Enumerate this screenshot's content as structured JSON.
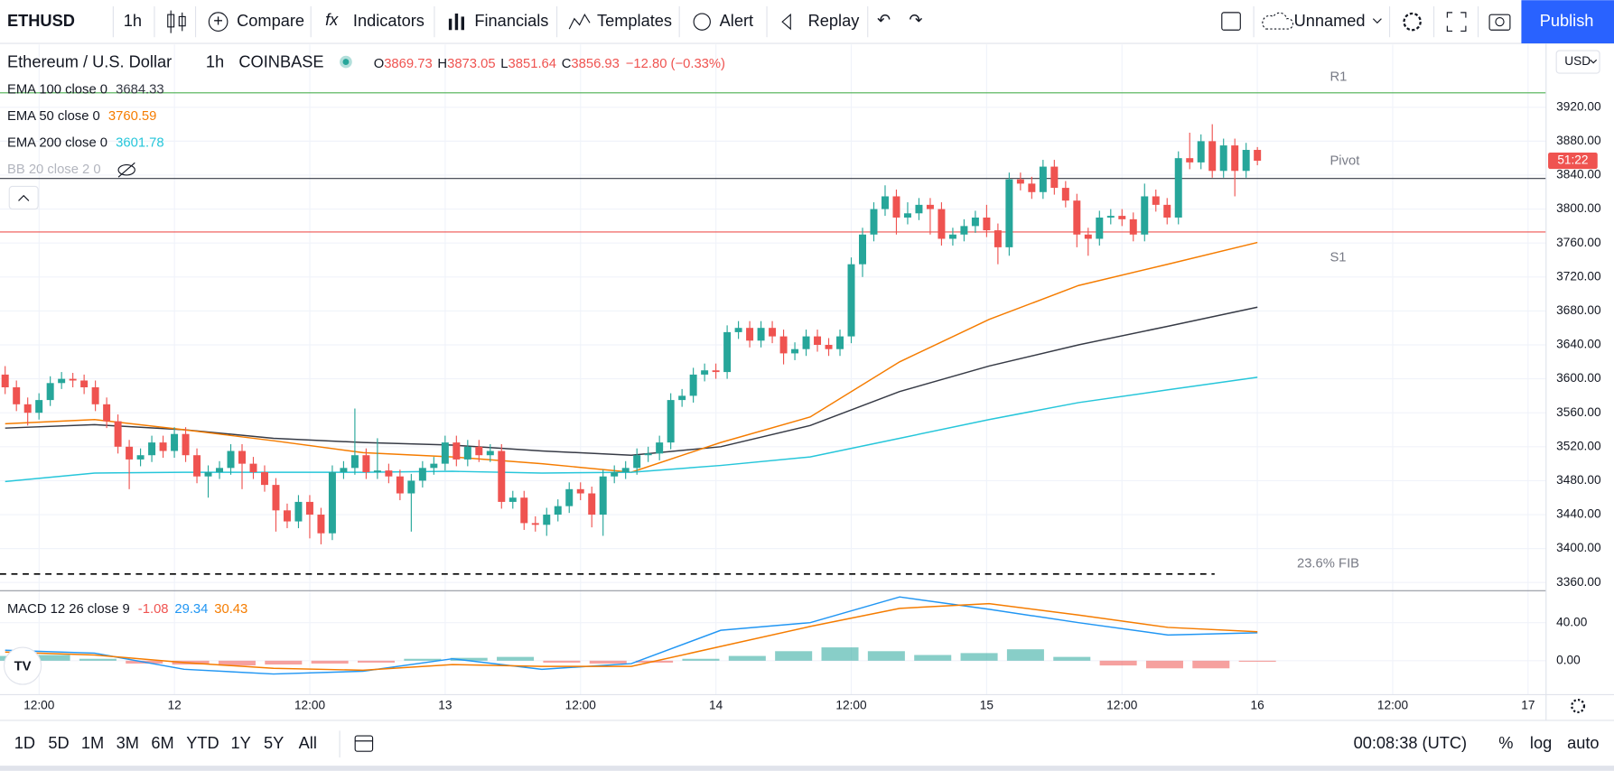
{
  "toolbar": {
    "symbol": "ETHUSD",
    "interval": "1h",
    "buttons": [
      "Compare",
      "Indicators",
      "Financials",
      "Templates",
      "Alert",
      "Replay"
    ],
    "layout_name": "Unnamed",
    "publish": "Publish"
  },
  "legend": {
    "instrument": "Ethereum / U.S. Dollar",
    "exchange": "COINBASE",
    "ohlc_keys": [
      "O",
      "H",
      "L",
      "C"
    ],
    "change": "−12.80 (−0.33%)",
    "bb": "BB 20 close 2 0"
  },
  "indicators": [
    {
      "name": "EMA 100 close 0",
      "color": "#363a45",
      "values": [
        3542,
        3546,
        3540,
        3530,
        3525,
        3522,
        3515,
        3510,
        3520,
        3545,
        3585,
        3615,
        3640,
        3662,
        3684.33
      ]
    },
    {
      "name": "EMA 50 close 0",
      "color": "#f57c00",
      "values": [
        3547,
        3552,
        3540,
        3527,
        3513,
        3508,
        3500,
        3490,
        3525,
        3555,
        3620,
        3670,
        3710,
        3735,
        3760.59
      ]
    },
    {
      "name": "EMA 200 close 0",
      "color": "#26c6da",
      "values": [
        3479,
        3489,
        3490,
        3490,
        3490,
        3491,
        3489,
        3490,
        3498,
        3508,
        3530,
        3552,
        3572,
        3587,
        3601.78
      ]
    }
  ],
  "price": {
    "currency": "USD",
    "countdown": "51:22",
    "up_color": "#26a69a",
    "down_color": "#ef5350",
    "ylim": [
      3351.5,
      3994
    ],
    "yticks": [
      {
        "value": 3920,
        "label": "3920.00"
      },
      {
        "value": 3880,
        "label": "3880.00"
      },
      {
        "value": 3840,
        "label": "3840.00"
      },
      {
        "value": 3800,
        "label": "3800.00"
      },
      {
        "value": 3760,
        "label": "3760.00"
      },
      {
        "value": 3720,
        "label": "3720.00"
      },
      {
        "value": 3680,
        "label": "3680.00"
      },
      {
        "value": 3640,
        "label": "3640.00"
      },
      {
        "value": 3600,
        "label": "3600.00"
      },
      {
        "value": 3560,
        "label": "3560.00"
      },
      {
        "value": 3520,
        "label": "3520.00"
      },
      {
        "value": 3480,
        "label": "3480.00"
      },
      {
        "value": 3440,
        "label": "3440.00"
      },
      {
        "value": 3400,
        "label": "3400.00"
      },
      {
        "value": 3360,
        "label": "3360.00"
      }
    ],
    "candles": [
      [
        3605,
        3615,
        3582,
        3590
      ],
      [
        3590,
        3598,
        3562,
        3570
      ],
      [
        3570,
        3578,
        3545,
        3560
      ],
      [
        3560,
        3583,
        3552,
        3575
      ],
      [
        3575,
        3603,
        3568,
        3595
      ],
      [
        3595,
        3608,
        3588,
        3600
      ],
      [
        3600,
        3607,
        3590,
        3598
      ],
      [
        3598,
        3605,
        3582,
        3590
      ],
      [
        3590,
        3598,
        3562,
        3570
      ],
      [
        3570,
        3578,
        3542,
        3550
      ],
      [
        3550,
        3558,
        3512,
        3520
      ],
      [
        3520,
        3528,
        3470,
        3505
      ],
      [
        3505,
        3518,
        3497,
        3510
      ],
      [
        3510,
        3533,
        3502,
        3525
      ],
      [
        3525,
        3533,
        3507,
        3515
      ],
      [
        3515,
        3543,
        3507,
        3535
      ],
      [
        3535,
        3543,
        3502,
        3510
      ],
      [
        3510,
        3518,
        3477,
        3485
      ],
      [
        3485,
        3498,
        3460,
        3490
      ],
      [
        3490,
        3503,
        3482,
        3495
      ],
      [
        3495,
        3523,
        3487,
        3515
      ],
      [
        3515,
        3523,
        3470,
        3500
      ],
      [
        3500,
        3508,
        3482,
        3490
      ],
      [
        3490,
        3498,
        3467,
        3475
      ],
      [
        3475,
        3483,
        3420,
        3445
      ],
      [
        3445,
        3453,
        3424,
        3432
      ],
      [
        3432,
        3463,
        3424,
        3455
      ],
      [
        3455,
        3463,
        3412,
        3440
      ],
      [
        3440,
        3448,
        3405,
        3418
      ],
      [
        3418,
        3498,
        3410,
        3490
      ],
      [
        3490,
        3503,
        3482,
        3495
      ],
      [
        3495,
        3565,
        3487,
        3510
      ],
      [
        3510,
        3518,
        3482,
        3490
      ],
      [
        3490,
        3530,
        3482,
        3492
      ],
      [
        3492,
        3500,
        3477,
        3485
      ],
      [
        3485,
        3493,
        3457,
        3465
      ],
      [
        3465,
        3488,
        3420,
        3480
      ],
      [
        3480,
        3503,
        3472,
        3495
      ],
      [
        3495,
        3508,
        3487,
        3500
      ],
      [
        3500,
        3533,
        3492,
        3525
      ],
      [
        3525,
        3533,
        3497,
        3505
      ],
      [
        3505,
        3528,
        3497,
        3520
      ],
      [
        3520,
        3528,
        3502,
        3510
      ],
      [
        3510,
        3523,
        3502,
        3515
      ],
      [
        3515,
        3523,
        3447,
        3455
      ],
      [
        3455,
        3468,
        3447,
        3460
      ],
      [
        3460,
        3468,
        3422,
        3430
      ],
      [
        3430,
        3438,
        3420,
        3428
      ],
      [
        3428,
        3448,
        3415,
        3440
      ],
      [
        3440,
        3458,
        3432,
        3450
      ],
      [
        3450,
        3478,
        3442,
        3470
      ],
      [
        3470,
        3478,
        3457,
        3465
      ],
      [
        3465,
        3473,
        3425,
        3440
      ],
      [
        3440,
        3493,
        3415,
        3485
      ],
      [
        3485,
        3498,
        3477,
        3490
      ],
      [
        3490,
        3503,
        3482,
        3495
      ],
      [
        3495,
        3518,
        3487,
        3510
      ],
      [
        3510,
        3520,
        3502,
        3512
      ],
      [
        3512,
        3533,
        3504,
        3525
      ],
      [
        3525,
        3583,
        3517,
        3575
      ],
      [
        3575,
        3588,
        3567,
        3580
      ],
      [
        3580,
        3613,
        3572,
        3605
      ],
      [
        3605,
        3618,
        3597,
        3610
      ],
      [
        3610,
        3618,
        3600,
        3608
      ],
      [
        3608,
        3663,
        3600,
        3655
      ],
      [
        3655,
        3668,
        3647,
        3660
      ],
      [
        3660,
        3668,
        3637,
        3645
      ],
      [
        3645,
        3668,
        3637,
        3660
      ],
      [
        3660,
        3668,
        3642,
        3650
      ],
      [
        3650,
        3658,
        3617,
        3630
      ],
      [
        3630,
        3643,
        3622,
        3635
      ],
      [
        3635,
        3658,
        3627,
        3650
      ],
      [
        3650,
        3658,
        3632,
        3640
      ],
      [
        3640,
        3648,
        3627,
        3635
      ],
      [
        3635,
        3658,
        3627,
        3650
      ],
      [
        3650,
        3743,
        3642,
        3735
      ],
      [
        3735,
        3778,
        3720,
        3770
      ],
      [
        3770,
        3808,
        3762,
        3800
      ],
      [
        3800,
        3828,
        3792,
        3815
      ],
      [
        3815,
        3823,
        3770,
        3790
      ],
      [
        3790,
        3808,
        3782,
        3795
      ],
      [
        3795,
        3813,
        3787,
        3805
      ],
      [
        3805,
        3813,
        3770,
        3800
      ],
      [
        3800,
        3808,
        3757,
        3765
      ],
      [
        3765,
        3778,
        3757,
        3770
      ],
      [
        3770,
        3788,
        3762,
        3780
      ],
      [
        3780,
        3798,
        3772,
        3790
      ],
      [
        3790,
        3805,
        3767,
        3775
      ],
      [
        3775,
        3783,
        3735,
        3755
      ],
      [
        3755,
        3843,
        3745,
        3835
      ],
      [
        3835,
        3843,
        3822,
        3830
      ],
      [
        3830,
        3838,
        3812,
        3820
      ],
      [
        3820,
        3858,
        3812,
        3850
      ],
      [
        3850,
        3858,
        3817,
        3825
      ],
      [
        3825,
        3833,
        3802,
        3810
      ],
      [
        3810,
        3818,
        3755,
        3770
      ],
      [
        3770,
        3778,
        3745,
        3765
      ],
      [
        3765,
        3798,
        3757,
        3790
      ],
      [
        3790,
        3800,
        3782,
        3792
      ],
      [
        3792,
        3800,
        3780,
        3788
      ],
      [
        3788,
        3796,
        3762,
        3770
      ],
      [
        3770,
        3830,
        3762,
        3815
      ],
      [
        3815,
        3823,
        3797,
        3805
      ],
      [
        3805,
        3813,
        3782,
        3790
      ],
      [
        3790,
        3868,
        3782,
        3860
      ],
      [
        3860,
        3890,
        3847,
        3855
      ],
      [
        3855,
        3888,
        3847,
        3880
      ],
      [
        3880,
        3900,
        3837,
        3845
      ],
      [
        3845,
        3883,
        3837,
        3875
      ],
      [
        3875,
        3883,
        3815,
        3845
      ],
      [
        3845,
        3878,
        3837,
        3869.73
      ],
      [
        3869.73,
        3873.05,
        3851.64,
        3856.93
      ]
    ]
  },
  "levels": [
    {
      "label": "R1",
      "value": 3937,
      "color": "#4caf50"
    },
    {
      "label": "Pivot",
      "value": 3836,
      "color": "#363a45"
    },
    {
      "label": "S1",
      "value": 3773,
      "color": "#ef5350"
    },
    {
      "label": "23.6% FIB",
      "value": 3370,
      "color": "#000000",
      "dashed": true
    }
  ],
  "macd": {
    "name": "MACD 12 26 close 9",
    "ylim": [
      -35.7,
      72.4
    ],
    "yticks": [
      {
        "value": 40,
        "label": "40.00"
      },
      {
        "value": 0,
        "label": "0.00"
      }
    ],
    "histogram": [
      5,
      6,
      2,
      -3,
      -4,
      -5,
      -4,
      -3,
      -2,
      2,
      3,
      4,
      -2,
      -3,
      -2,
      2,
      5,
      10,
      14,
      10,
      6,
      8,
      12,
      4,
      -5,
      -8,
      -8,
      -1.08
    ],
    "macd_line": {
      "color": "#2196f3",
      "values": [
        11,
        8,
        -9,
        -14,
        -11,
        2,
        -9,
        -3,
        32,
        40,
        67,
        54,
        40,
        27,
        29.34
      ]
    },
    "signal": {
      "color": "#f57c00",
      "values": [
        9,
        6,
        -2,
        -8,
        -10,
        -4,
        -6,
        -6,
        15,
        36,
        55,
        60,
        48,
        35,
        30.43
      ]
    }
  },
  "time_axis": {
    "labels": [
      "12:00",
      "12",
      "12:00",
      "13",
      "12:00",
      "14",
      "12:00",
      "15",
      "12:00",
      "16",
      "12:00",
      "17"
    ]
  },
  "bottom": {
    "ranges": [
      "1D",
      "5D",
      "1M",
      "3M",
      "6M",
      "YTD",
      "1Y",
      "5Y",
      "All"
    ],
    "clock": "00:08:38 (UTC)",
    "options": [
      "%",
      "log",
      "auto"
    ]
  }
}
